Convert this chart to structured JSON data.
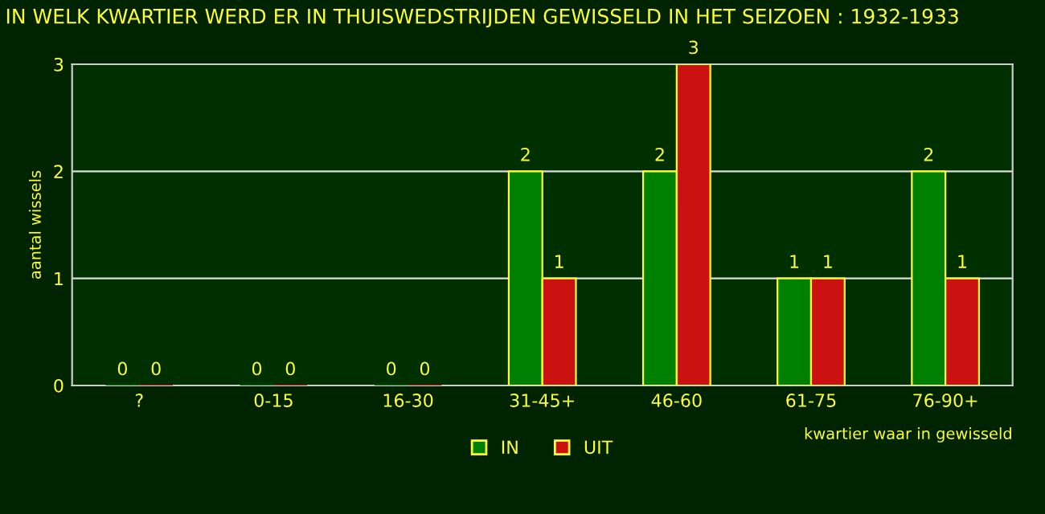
{
  "chart_data": {
    "type": "bar",
    "title": "IN WELK KWARTIER WERD ER IN THUISWEDSTRIJDEN GEWISSELD IN HET SEIZOEN : 1932-1933",
    "xlabel": "kwartier waar in gewisseld",
    "ylabel": "aantal wissels",
    "categories": [
      "?",
      "0-15",
      "16-30",
      "31-45+",
      "46-60",
      "61-75",
      "76-90+"
    ],
    "series": [
      {
        "name": "IN",
        "color": "#008000",
        "values": [
          0,
          0,
          0,
          2,
          2,
          1,
          2
        ]
      },
      {
        "name": "UIT",
        "color": "#cc1111",
        "values": [
          0,
          0,
          0,
          1,
          3,
          1,
          1
        ]
      }
    ],
    "ylim": [
      0,
      3
    ],
    "yticks": [
      0,
      1,
      2,
      3
    ],
    "grid": "y",
    "legend": "bottom",
    "data_labels": true
  }
}
